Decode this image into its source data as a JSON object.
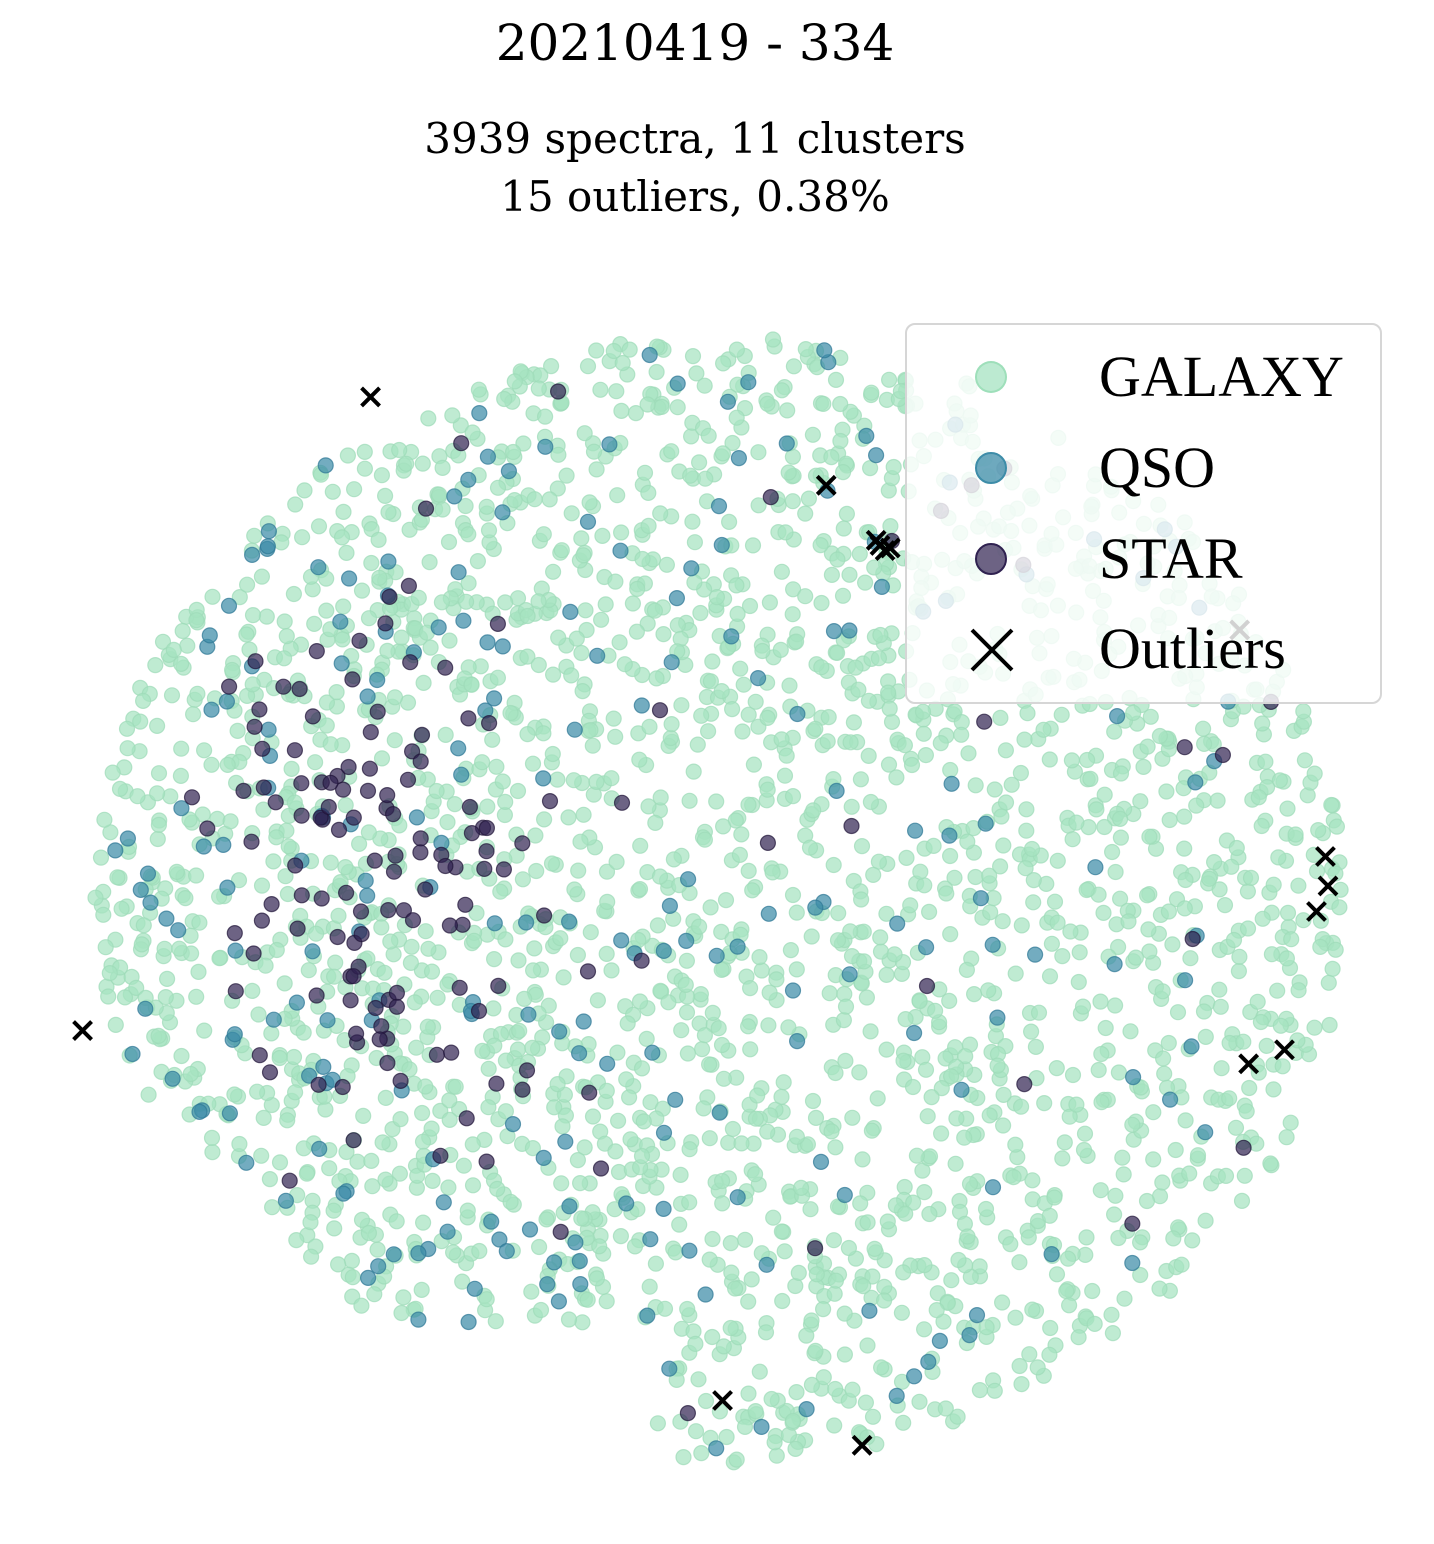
{
  "chart_data": {
    "type": "scatter",
    "title": "20210419 - 334",
    "subtitle_lines": [
      "3939 spectra, 11 clusters",
      "15 outliers, 0.38%"
    ],
    "xlabel": "",
    "ylabel": "",
    "axes_visible": false,
    "grid": false,
    "xlim": [
      -52,
      52
    ],
    "ylim": [
      -46,
      46
    ],
    "legend_placement": "top-right",
    "series": [
      {
        "name": "GALAXY",
        "color": "#a6e3c1",
        "marker": "circle",
        "approx_count": 2400,
        "distribution": {
          "shape": "ellipse",
          "center": [
            0,
            0
          ],
          "radii": [
            49,
            44
          ]
        }
      },
      {
        "name": "QSO",
        "color": "#3d8ca8",
        "marker": "circle",
        "approx_count": 230,
        "distribution": {
          "shape": "ellipse",
          "center": [
            0,
            0
          ],
          "radii": [
            49,
            44
          ],
          "bias": "left"
        }
      },
      {
        "name": "STAR",
        "color": "#2f2150",
        "marker": "circle",
        "approx_count": 150,
        "distribution": {
          "cluster_center": [
            -27,
            5
          ],
          "cluster_sd": [
            6,
            11
          ],
          "cluster_count": 110,
          "scattered_count": 40
        }
      },
      {
        "name": "Outliers",
        "color": "#000000",
        "marker": "x",
        "points": [
          [
            -27.3,
            39.3
          ],
          [
            8.3,
            32.4
          ],
          [
            12.2,
            28.1
          ],
          [
            12.5,
            27.7
          ],
          [
            12.9,
            27.3
          ],
          [
            13.3,
            27.5
          ],
          [
            40.6,
            21.1
          ],
          [
            47.3,
            3.4
          ],
          [
            47.5,
            1.1
          ],
          [
            46.6,
            -0.9
          ],
          [
            -49.8,
            -10.2
          ],
          [
            41.3,
            -12.8
          ],
          [
            44.1,
            -11.7
          ],
          [
            0.2,
            -39.1
          ],
          [
            11.1,
            -42.6
          ]
        ]
      }
    ]
  }
}
